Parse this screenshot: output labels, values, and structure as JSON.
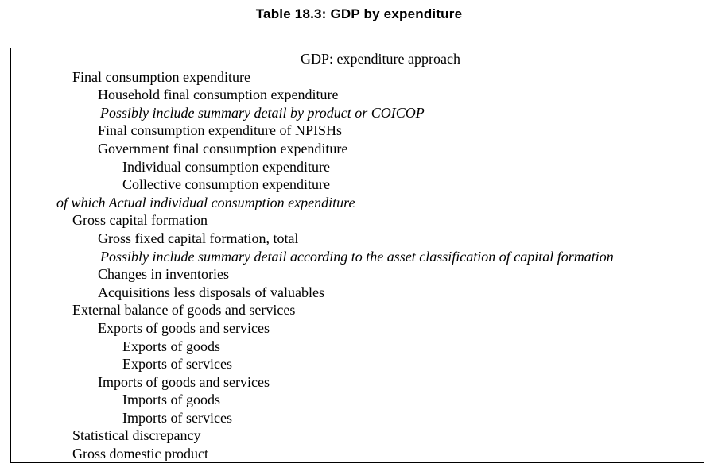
{
  "title": "Table 18.3: GDP by expenditure",
  "table": {
    "header": "GDP: expenditure approach",
    "rows": [
      {
        "text": "Final consumption expenditure",
        "indent": 1,
        "italic": false
      },
      {
        "text": "Household final consumption expenditure",
        "indent": 2,
        "italic": false
      },
      {
        "text": "Possibly include summary detail by product or COICOP",
        "indent": 2,
        "italic": true
      },
      {
        "text": "Final consumption expenditure of NPISHs",
        "indent": 2,
        "italic": false
      },
      {
        "text": "Government final consumption expenditure",
        "indent": 2,
        "italic": false
      },
      {
        "text": "Individual consumption expenditure",
        "indent": 3,
        "italic": false
      },
      {
        "text": "Collective consumption expenditure",
        "indent": 3,
        "italic": false
      },
      {
        "text": "of which Actual individual consumption expenditure",
        "indent": 0,
        "italic": true
      },
      {
        "text": "Gross capital formation",
        "indent": 1,
        "italic": false
      },
      {
        "text": "Gross fixed capital formation, total",
        "indent": 2,
        "italic": false
      },
      {
        "text": "Possibly include summary detail according to the asset classification of capital formation",
        "indent": 2,
        "italic": true
      },
      {
        "text": "Changes in inventories",
        "indent": 2,
        "italic": false
      },
      {
        "text": "Acquisitions less disposals of valuables",
        "indent": 2,
        "italic": false
      },
      {
        "text": "External balance of goods and services",
        "indent": 1,
        "italic": false
      },
      {
        "text": "Exports of goods and services",
        "indent": 2,
        "italic": false
      },
      {
        "text": "Exports of goods",
        "indent": 3,
        "italic": false
      },
      {
        "text": "Exports of services",
        "indent": 3,
        "italic": false
      },
      {
        "text": "Imports of goods and services",
        "indent": 2,
        "italic": false
      },
      {
        "text": "Imports of goods",
        "indent": 3,
        "italic": false
      },
      {
        "text": "Imports of services",
        "indent": 3,
        "italic": false
      },
      {
        "text": "Statistical discrepancy",
        "indent": 1,
        "italic": false
      },
      {
        "text": "Gross domestic product",
        "indent": 1,
        "italic": false
      }
    ]
  },
  "colors": {
    "background": "#ffffff",
    "text": "#000000",
    "border": "#000000"
  }
}
